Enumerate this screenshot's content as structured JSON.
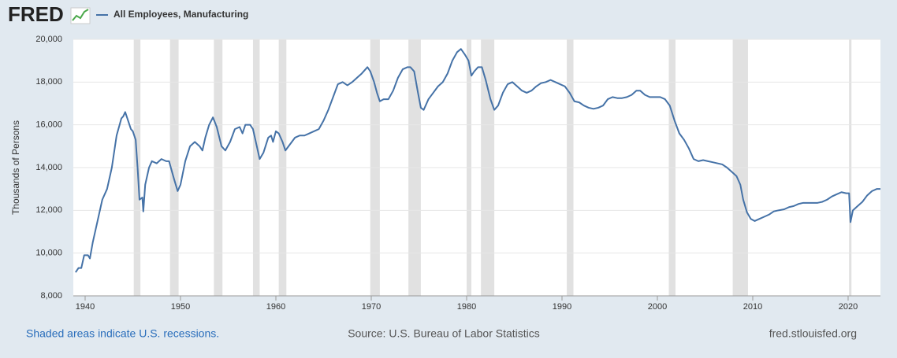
{
  "header": {
    "logo": "FRED"
  },
  "footer": {
    "left": "Shaded areas indicate U.S. recessions.",
    "center": "Source: U.S. Bureau of Labor Statistics",
    "right": "fred.stlouisfed.org"
  },
  "chart_data": {
    "type": "line",
    "ylabel": "Thousands of Persons",
    "xlim": [
      1938.76,
      2023.39
    ],
    "xticks": [
      1940,
      1950,
      1960,
      1970,
      1980,
      1990,
      2000,
      2010,
      2020
    ],
    "ylim": [
      8000,
      20000
    ],
    "yticks": [
      {
        "value": 8000,
        "label": "8,000"
      },
      {
        "value": 10000,
        "label": "10,000"
      },
      {
        "value": 12000,
        "label": "12,000"
      },
      {
        "value": 14000,
        "label": "14,000"
      },
      {
        "value": 16000,
        "label": "16,000"
      },
      {
        "value": 18000,
        "label": "18,000"
      },
      {
        "value": 20000,
        "label": "20,000"
      }
    ],
    "grid": true,
    "recession_color": "#e1e1e1",
    "recessions": [
      [
        1945.1,
        1945.8
      ],
      [
        1948.9,
        1949.8
      ],
      [
        1953.5,
        1954.4
      ],
      [
        1957.6,
        1958.3
      ],
      [
        1960.3,
        1961.1
      ],
      [
        1969.9,
        1970.9
      ],
      [
        1973.9,
        1975.2
      ],
      [
        1980.0,
        1980.5
      ],
      [
        1981.5,
        1982.9
      ],
      [
        1990.5,
        1991.2
      ],
      [
        2001.2,
        2001.9
      ],
      [
        2007.9,
        2009.5
      ],
      [
        2020.1,
        2020.35
      ]
    ],
    "x": [
      1939.0,
      1939.3,
      1939.6,
      1939.9,
      1940.3,
      1940.5,
      1940.8,
      1941.3,
      1941.8,
      1942.3,
      1942.8,
      1943.3,
      1943.8,
      1944.0,
      1944.2,
      1944.5,
      1944.8,
      1945.0,
      1945.3,
      1945.5,
      1945.7,
      1946.0,
      1946.1,
      1946.3,
      1946.7,
      1947.0,
      1947.5,
      1948.0,
      1948.5,
      1948.8,
      1949.3,
      1949.7,
      1950.0,
      1950.5,
      1951.0,
      1951.5,
      1952.0,
      1952.3,
      1952.6,
      1953.0,
      1953.4,
      1953.8,
      1954.3,
      1954.7,
      1955.2,
      1955.7,
      1956.2,
      1956.5,
      1956.8,
      1957.3,
      1957.6,
      1958.0,
      1958.3,
      1958.7,
      1959.2,
      1959.5,
      1959.7,
      1960.0,
      1960.3,
      1960.7,
      1961.0,
      1961.5,
      1962.0,
      1962.5,
      1963.0,
      1963.5,
      1964.0,
      1964.5,
      1965.0,
      1965.5,
      1966.0,
      1966.5,
      1967.0,
      1967.5,
      1968.0,
      1968.5,
      1969.0,
      1969.6,
      1969.9,
      1970.3,
      1970.6,
      1970.9,
      1971.3,
      1971.8,
      1972.3,
      1972.8,
      1973.3,
      1973.8,
      1974.1,
      1974.5,
      1974.9,
      1975.2,
      1975.5,
      1976.0,
      1976.5,
      1977.0,
      1977.5,
      1978.0,
      1978.5,
      1979.0,
      1979.4,
      1979.8,
      1980.2,
      1980.5,
      1980.8,
      1981.2,
      1981.6,
      1982.0,
      1982.5,
      1982.9,
      1983.3,
      1983.8,
      1984.3,
      1984.8,
      1985.3,
      1985.8,
      1986.3,
      1986.8,
      1987.3,
      1987.8,
      1988.3,
      1988.8,
      1989.3,
      1989.8,
      1990.3,
      1990.8,
      1991.3,
      1991.8,
      1992.3,
      1992.8,
      1993.3,
      1993.8,
      1994.3,
      1994.8,
      1995.3,
      1995.8,
      1996.3,
      1996.8,
      1997.3,
      1997.8,
      1998.2,
      1998.7,
      1999.2,
      1999.7,
      2000.3,
      2000.8,
      2001.3,
      2001.8,
      2002.3,
      2002.8,
      2003.3,
      2003.8,
      2004.3,
      2004.8,
      2005.3,
      2005.8,
      2006.3,
      2006.8,
      2007.3,
      2007.8,
      2008.3,
      2008.7,
      2009.0,
      2009.4,
      2009.8,
      2010.2,
      2010.7,
      2011.2,
      2011.7,
      2012.2,
      2012.7,
      2013.3,
      2013.8,
      2014.3,
      2014.8,
      2015.3,
      2015.8,
      2016.3,
      2016.8,
      2017.3,
      2017.8,
      2018.3,
      2018.8,
      2019.3,
      2019.8,
      2020.1,
      2020.25,
      2020.5,
      2021.0,
      2021.5,
      2022.0,
      2022.5,
      2023.0,
      2023.39
    ],
    "series": [
      {
        "name": "All Employees, Manufacturing",
        "color": "#4572a7",
        "values": [
          9100,
          9300,
          9300,
          9900,
          9900,
          9750,
          10500,
          11500,
          12500,
          13000,
          14000,
          15500,
          16300,
          16400,
          16600,
          16200,
          15800,
          15700,
          15300,
          14000,
          12500,
          12600,
          11950,
          13200,
          14000,
          14300,
          14200,
          14400,
          14300,
          14300,
          13500,
          12900,
          13200,
          14300,
          15000,
          15200,
          15000,
          14800,
          15400,
          16000,
          16350,
          15900,
          15000,
          14800,
          15200,
          15800,
          15900,
          15600,
          16000,
          16000,
          15800,
          15000,
          14400,
          14700,
          15400,
          15500,
          15200,
          15700,
          15600,
          15200,
          14800,
          15100,
          15400,
          15500,
          15500,
          15600,
          15700,
          15800,
          16200,
          16700,
          17300,
          17900,
          18000,
          17850,
          18000,
          18200,
          18400,
          18700,
          18500,
          18000,
          17500,
          17100,
          17200,
          17200,
          17600,
          18200,
          18600,
          18700,
          18700,
          18500,
          17500,
          16800,
          16700,
          17200,
          17500,
          17800,
          18000,
          18400,
          19000,
          19400,
          19550,
          19300,
          19000,
          18300,
          18500,
          18700,
          18700,
          18100,
          17200,
          16700,
          16900,
          17500,
          17900,
          18000,
          17800,
          17600,
          17500,
          17600,
          17800,
          17950,
          18000,
          18100,
          18000,
          17900,
          17800,
          17500,
          17100,
          17050,
          16900,
          16800,
          16750,
          16800,
          16900,
          17200,
          17300,
          17250,
          17250,
          17300,
          17400,
          17600,
          17600,
          17400,
          17300,
          17300,
          17300,
          17200,
          16900,
          16200,
          15600,
          15300,
          14900,
          14400,
          14300,
          14350,
          14300,
          14250,
          14200,
          14150,
          14000,
          13800,
          13600,
          13200,
          12500,
          11900,
          11600,
          11500,
          11600,
          11700,
          11800,
          11950,
          12000,
          12050,
          12150,
          12200,
          12300,
          12350,
          12350,
          12350,
          12350,
          12400,
          12500,
          12650,
          12750,
          12850,
          12800,
          12800,
          11450,
          12000,
          12200,
          12400,
          12700,
          12900,
          13000,
          13000
        ]
      }
    ]
  }
}
